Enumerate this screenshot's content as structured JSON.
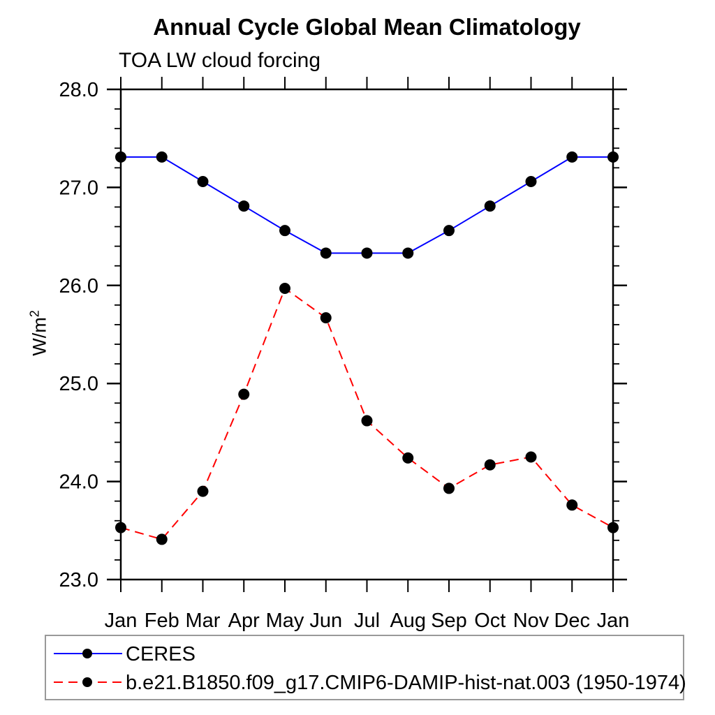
{
  "chart_data": {
    "type": "line",
    "title": "Annual Cycle Global Mean Climatology",
    "subtitle": "TOA LW cloud forcing",
    "ylabel": {
      "base": "W/m",
      "exponent": "2"
    },
    "categories": [
      "Jan",
      "Feb",
      "Mar",
      "Apr",
      "May",
      "Jun",
      "Jul",
      "Aug",
      "Sep",
      "Oct",
      "Nov",
      "Dec",
      "Jan"
    ],
    "ylim": [
      23.0,
      28.0
    ],
    "y_tick_labels": [
      "23.0",
      "24.0",
      "25.0",
      "26.0",
      "27.0",
      "28.0"
    ],
    "y_major_ticks": [
      23.0,
      24.0,
      25.0,
      26.0,
      27.0,
      28.0
    ],
    "y_minor_step": 0.2,
    "grid": false,
    "legend_position": "bottom-left",
    "axis_color": "#000000",
    "series": [
      {
        "name": "CERES",
        "color": "#0000ff",
        "line_style": "solid",
        "marker": "filled-circle",
        "marker_color": "#000000",
        "values": [
          27.31,
          27.31,
          27.06,
          26.81,
          26.56,
          26.33,
          26.33,
          26.33,
          26.56,
          26.81,
          27.06,
          27.31,
          27.31
        ]
      },
      {
        "name": "b.e21.B1850.f09_g17.CMIP6-DAMIP-hist-nat.003 (1950-1974)",
        "color": "#ff0000",
        "line_style": "dashed",
        "marker": "filled-circle",
        "marker_color": "#000000",
        "values": [
          23.53,
          23.41,
          23.9,
          24.89,
          25.97,
          25.67,
          24.62,
          24.24,
          23.93,
          24.17,
          24.25,
          23.76,
          23.53
        ]
      }
    ]
  }
}
